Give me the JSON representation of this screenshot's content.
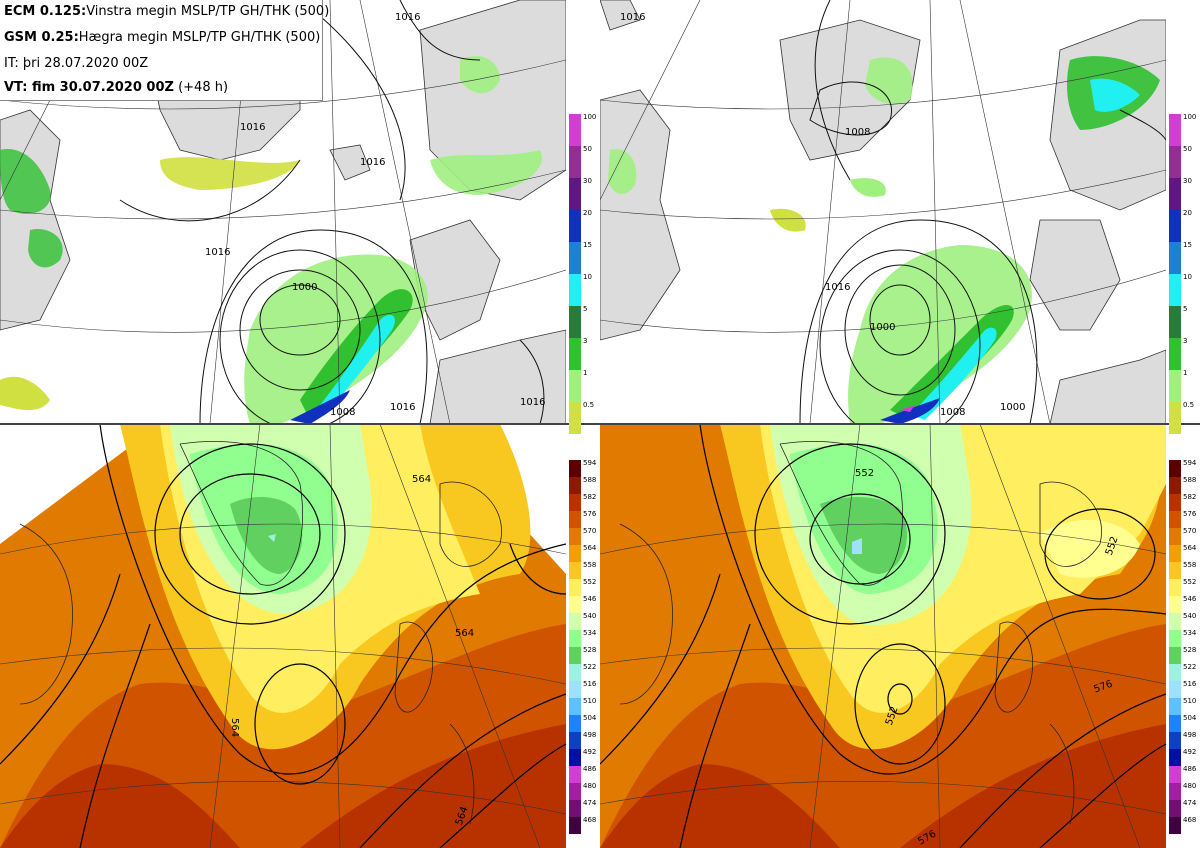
{
  "info": {
    "ecm_label": "ECM 0.125:",
    "ecm_text": "Vinstra megin MSLP/TP GH/THK (500)",
    "gsm_label": "GSM 0.25:",
    "gsm_text": "Hægra megin MSLP/TP GH/THK (500)",
    "it_text": "IT: þri 28.07.2020 00Z",
    "vt_label": "VT: fim 30.07.2020 00Z",
    "vt_extra": "(+48 h)"
  },
  "precip_scale": [
    "100",
    "50",
    "30",
    "20",
    "15",
    "10",
    "5",
    "3",
    "1",
    "0.5"
  ],
  "precip_colors": [
    "#d040d0",
    "#903090",
    "#601880",
    "#1030c0",
    "#2080d0",
    "#20f0f0",
    "#2a7a3a",
    "#30c030",
    "#a0f080",
    "#d0e040"
  ],
  "thk_scale": [
    "594",
    "588",
    "582",
    "576",
    "570",
    "564",
    "558",
    "552",
    "546",
    "540",
    "534",
    "528",
    "522",
    "516",
    "510",
    "504",
    "498",
    "492",
    "486",
    "480",
    "474",
    "468"
  ],
  "thk_colors": [
    "#5a0000",
    "#8a1a00",
    "#b83200",
    "#d05400",
    "#e07a00",
    "#f0a000",
    "#f8c820",
    "#ffee60",
    "#ffff90",
    "#d0ffb0",
    "#90ff90",
    "#60d060",
    "#a0f0e0",
    "#a0e0ff",
    "#60c0ff",
    "#2080ff",
    "#1040c0",
    "#0010a0",
    "#d040d0",
    "#a020a0",
    "#701070",
    "#400040"
  ],
  "isobar_labels": [
    "1016",
    "1008",
    "1016",
    "1000",
    "1016",
    "1016",
    "1000",
    "1008",
    "1016",
    "1016",
    "1008",
    "1016",
    "1000",
    "1016"
  ],
  "gh_labels": [
    "564",
    "564",
    "564",
    "564",
    "552",
    "552",
    "576",
    "576",
    "552"
  ],
  "palette": {
    "land": "#dcdcdc",
    "ocean": "#ffffff",
    "coast": "#333333"
  }
}
